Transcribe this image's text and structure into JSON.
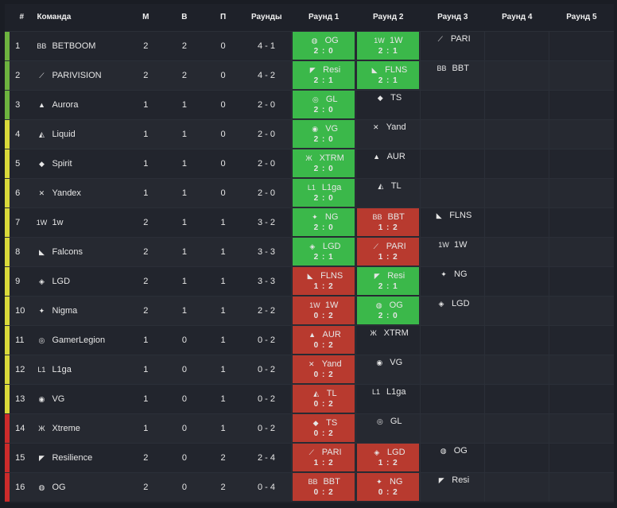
{
  "headers": [
    "#",
    "Команда",
    "М",
    "В",
    "П",
    "Раунды",
    "Раунд 1",
    "Раунд 2",
    "Раунд 3",
    "Раунд 4",
    "Раунд 5"
  ],
  "colors": {
    "green_bar": "#6db33f",
    "yellow_bar": "#d9d93a",
    "red_bar": "#cc2b2b",
    "win": "#3bb84a",
    "loss": "#b83a2f"
  },
  "rows": [
    {
      "pos": "1",
      "team": "BETBOOM",
      "icon": "betboom-icon",
      "m": "2",
      "w": "2",
      "l": "0",
      "rounds": "4 - 1",
      "bar": "green",
      "r": [
        {
          "t": "OG",
          "s": "2 : 0",
          "res": "win"
        },
        {
          "t": "1W",
          "s": "2 : 1",
          "res": "win"
        },
        {
          "t": "PARI",
          "s": "",
          "res": "none"
        }
      ]
    },
    {
      "pos": "2",
      "team": "PARIVISION",
      "icon": "parivision-icon",
      "m": "2",
      "w": "2",
      "l": "0",
      "rounds": "4 - 2",
      "bar": "green",
      "r": [
        {
          "t": "Resi",
          "s": "2 : 1",
          "res": "win"
        },
        {
          "t": "FLNS",
          "s": "2 : 1",
          "res": "win"
        },
        {
          "t": "BBT",
          "s": "",
          "res": "none"
        }
      ]
    },
    {
      "pos": "3",
      "team": "Aurora",
      "icon": "aurora-icon",
      "m": "1",
      "w": "1",
      "l": "0",
      "rounds": "2 - 0",
      "bar": "green",
      "r": [
        {
          "t": "GL",
          "s": "2 : 0",
          "res": "win"
        },
        {
          "t": "TS",
          "s": "",
          "res": "none"
        }
      ]
    },
    {
      "pos": "4",
      "team": "Liquid",
      "icon": "liquid-icon",
      "m": "1",
      "w": "1",
      "l": "0",
      "rounds": "2 - 0",
      "bar": "yellow",
      "r": [
        {
          "t": "VG",
          "s": "2 : 0",
          "res": "win"
        },
        {
          "t": "Yand",
          "s": "",
          "res": "none"
        }
      ]
    },
    {
      "pos": "5",
      "team": "Spirit",
      "icon": "spirit-icon",
      "m": "1",
      "w": "1",
      "l": "0",
      "rounds": "2 - 0",
      "bar": "yellow",
      "r": [
        {
          "t": "XTRM",
          "s": "2 : 0",
          "res": "win"
        },
        {
          "t": "AUR",
          "s": "",
          "res": "none"
        }
      ]
    },
    {
      "pos": "6",
      "team": "Yandex",
      "icon": "yandex-icon",
      "m": "1",
      "w": "1",
      "l": "0",
      "rounds": "2 - 0",
      "bar": "yellow",
      "r": [
        {
          "t": "L1ga",
          "s": "2 : 0",
          "res": "win"
        },
        {
          "t": "TL",
          "s": "",
          "res": "none"
        }
      ]
    },
    {
      "pos": "7",
      "team": "1w",
      "icon": "1w-icon",
      "m": "2",
      "w": "1",
      "l": "1",
      "rounds": "3 - 2",
      "bar": "yellow",
      "r": [
        {
          "t": "NG",
          "s": "2 : 0",
          "res": "win"
        },
        {
          "t": "BBT",
          "s": "1 : 2",
          "res": "loss"
        },
        {
          "t": "FLNS",
          "s": "",
          "res": "none"
        }
      ]
    },
    {
      "pos": "8",
      "team": "Falcons",
      "icon": "falcons-icon",
      "m": "2",
      "w": "1",
      "l": "1",
      "rounds": "3 - 3",
      "bar": "yellow",
      "r": [
        {
          "t": "LGD",
          "s": "2 : 1",
          "res": "win"
        },
        {
          "t": "PARI",
          "s": "1 : 2",
          "res": "loss"
        },
        {
          "t": "1W",
          "s": "",
          "res": "none"
        }
      ]
    },
    {
      "pos": "9",
      "team": "LGD",
      "icon": "lgd-icon",
      "m": "2",
      "w": "1",
      "l": "1",
      "rounds": "3 - 3",
      "bar": "yellow",
      "r": [
        {
          "t": "FLNS",
          "s": "1 : 2",
          "res": "loss"
        },
        {
          "t": "Resi",
          "s": "2 : 1",
          "res": "win"
        },
        {
          "t": "NG",
          "s": "",
          "res": "none"
        }
      ]
    },
    {
      "pos": "10",
      "team": "Nigma",
      "icon": "nigma-icon",
      "m": "2",
      "w": "1",
      "l": "1",
      "rounds": "2 - 2",
      "bar": "yellow",
      "r": [
        {
          "t": "1W",
          "s": "0 : 2",
          "res": "loss"
        },
        {
          "t": "OG",
          "s": "2 : 0",
          "res": "win"
        },
        {
          "t": "LGD",
          "s": "",
          "res": "none"
        }
      ]
    },
    {
      "pos": "11",
      "team": "GamerLegion",
      "icon": "gamerlegion-icon",
      "m": "1",
      "w": "0",
      "l": "1",
      "rounds": "0 - 2",
      "bar": "yellow",
      "r": [
        {
          "t": "AUR",
          "s": "0 : 2",
          "res": "loss"
        },
        {
          "t": "XTRM",
          "s": "",
          "res": "none"
        }
      ]
    },
    {
      "pos": "12",
      "team": "L1ga",
      "icon": "l1ga-icon",
      "m": "1",
      "w": "0",
      "l": "1",
      "rounds": "0 - 2",
      "bar": "yellow",
      "r": [
        {
          "t": "Yand",
          "s": "0 : 2",
          "res": "loss"
        },
        {
          "t": "VG",
          "s": "",
          "res": "none"
        }
      ]
    },
    {
      "pos": "13",
      "team": "VG",
      "icon": "vg-icon",
      "m": "1",
      "w": "0",
      "l": "1",
      "rounds": "0 - 2",
      "bar": "yellow",
      "r": [
        {
          "t": "TL",
          "s": "0 : 2",
          "res": "loss"
        },
        {
          "t": "L1ga",
          "s": "",
          "res": "none"
        }
      ]
    },
    {
      "pos": "14",
      "team": "Xtreme",
      "icon": "xtreme-icon",
      "m": "1",
      "w": "0",
      "l": "1",
      "rounds": "0 - 2",
      "bar": "red",
      "r": [
        {
          "t": "TS",
          "s": "0 : 2",
          "res": "loss"
        },
        {
          "t": "GL",
          "s": "",
          "res": "none"
        }
      ]
    },
    {
      "pos": "15",
      "team": "Resilience",
      "icon": "resilience-icon",
      "m": "2",
      "w": "0",
      "l": "2",
      "rounds": "2 - 4",
      "bar": "red",
      "r": [
        {
          "t": "PARI",
          "s": "1 : 2",
          "res": "loss"
        },
        {
          "t": "LGD",
          "s": "1 : 2",
          "res": "loss"
        },
        {
          "t": "OG",
          "s": "",
          "res": "none"
        }
      ]
    },
    {
      "pos": "16",
      "team": "OG",
      "icon": "og-icon",
      "m": "2",
      "w": "0",
      "l": "2",
      "rounds": "0 - 4",
      "bar": "red",
      "r": [
        {
          "t": "BBT",
          "s": "0 : 2",
          "res": "loss"
        },
        {
          "t": "NG",
          "s": "0 : 2",
          "res": "loss"
        },
        {
          "t": "Resi",
          "s": "",
          "res": "none"
        }
      ]
    }
  ]
}
